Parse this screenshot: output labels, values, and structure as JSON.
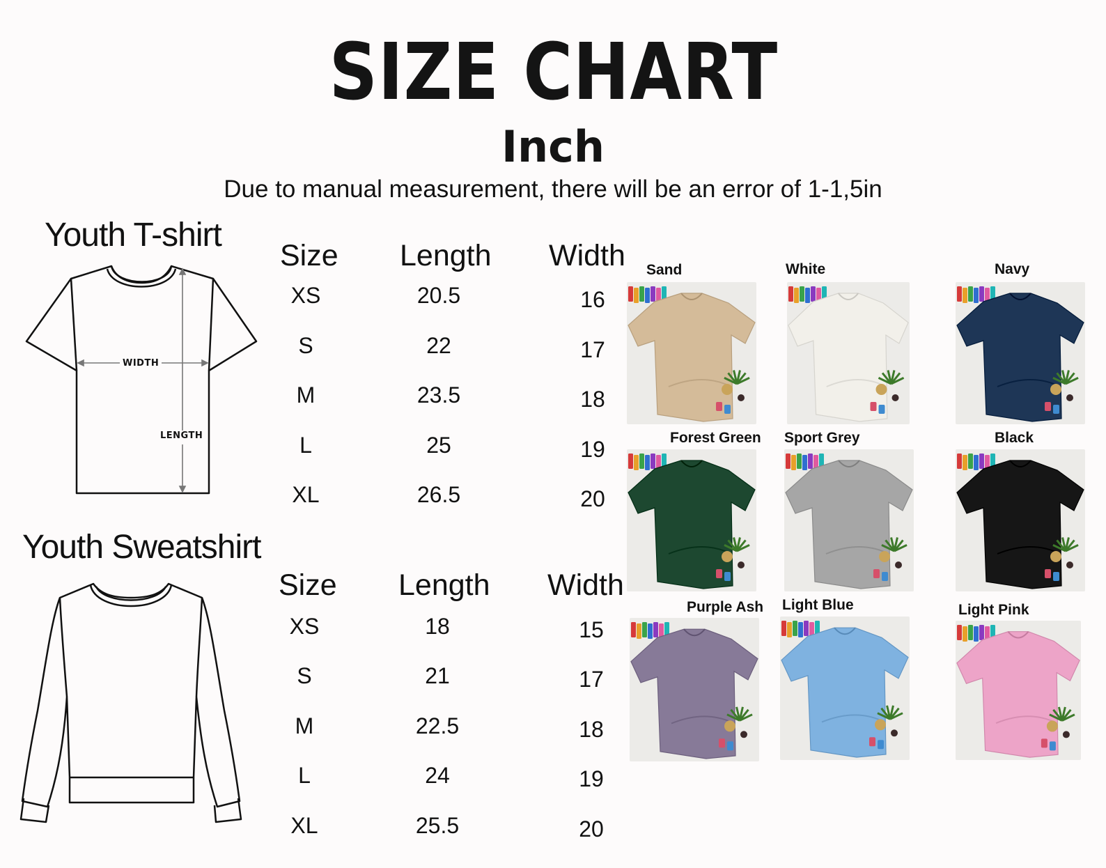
{
  "title": "SIZE CHART",
  "unit": "Inch",
  "note": "Due to manual measurement, there will be an error of 1-1,5in",
  "tshirt": {
    "title": "Youth T-shirt",
    "diagram_labels": {
      "width": "WIDTH",
      "length": "LENGTH"
    },
    "headers": {
      "size": "Size",
      "length": "Length",
      "width": "Width"
    },
    "rows": [
      {
        "size": "XS",
        "length": "20.5",
        "width": "16"
      },
      {
        "size": "S",
        "length": "22",
        "width": "17"
      },
      {
        "size": "M",
        "length": "23.5",
        "width": "18"
      },
      {
        "size": "L",
        "length": "25",
        "width": "19"
      },
      {
        "size": "XL",
        "length": "26.5",
        "width": "20"
      }
    ]
  },
  "sweatshirt": {
    "title": "Youth Sweatshirt",
    "headers": {
      "size": "Size",
      "length": "Length",
      "width": "Width"
    },
    "rows": [
      {
        "size": "XS",
        "length": "18",
        "width": "15"
      },
      {
        "size": "S",
        "length": "21",
        "width": "17"
      },
      {
        "size": "M",
        "length": "22.5",
        "width": "18"
      },
      {
        "size": "L",
        "length": "24",
        "width": "19"
      },
      {
        "size": "XL",
        "length": "25.5",
        "width": "20"
      }
    ]
  },
  "colors": [
    {
      "name": "Sand",
      "hex": "#d4bb99"
    },
    {
      "name": "White",
      "hex": "#f2f0ea"
    },
    {
      "name": "Navy",
      "hex": "#1e3656"
    },
    {
      "name": "Forest Green",
      "hex": "#1d4830"
    },
    {
      "name": "Sport Grey",
      "hex": "#a6a6a6"
    },
    {
      "name": "Black",
      "hex": "#161616"
    },
    {
      "name": "Purple Ash",
      "hex": "#877a98"
    },
    {
      "name": "Light Blue",
      "hex": "#7fb2e0"
    },
    {
      "name": "Light Pink",
      "hex": "#eda4c8"
    }
  ]
}
